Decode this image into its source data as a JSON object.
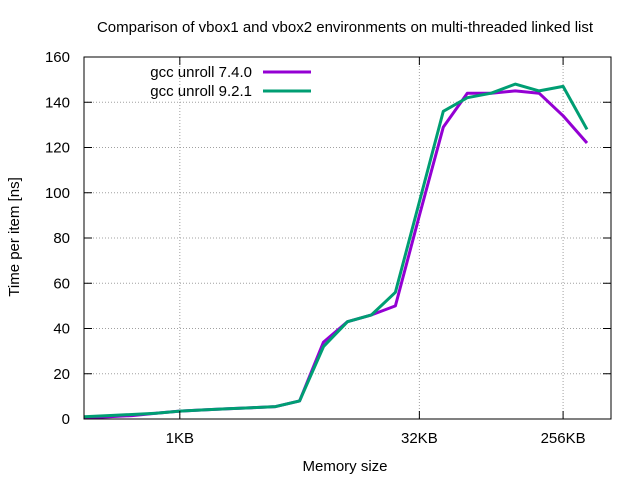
{
  "chart_data": {
    "type": "line",
    "title": "Comparison of vbox1 and vbox2 environments on multi-threaded linked list",
    "xlabel": "Memory size",
    "ylabel": "Time per item [ns]",
    "x_scale": "log2",
    "x_unit": "bytes",
    "xlim": [
      256,
      524288
    ],
    "ylim": [
      0,
      160
    ],
    "y_ticks": [
      0,
      20,
      40,
      60,
      80,
      100,
      120,
      140,
      160
    ],
    "x_ticks": [
      {
        "value": 1024,
        "label": "1KB"
      },
      {
        "value": 32768,
        "label": "32KB"
      },
      {
        "value": 262144,
        "label": "256KB"
      }
    ],
    "grid": true,
    "legend_position": "top-left",
    "series": [
      {
        "name": "gcc unroll 7.4.0",
        "color": "#9400d3",
        "points": [
          [
            256,
            0.5
          ],
          [
            362,
            1
          ],
          [
            512,
            1.5
          ],
          [
            724,
            2.5
          ],
          [
            1024,
            3.5
          ],
          [
            1448,
            4
          ],
          [
            2048,
            4.5
          ],
          [
            2896,
            5
          ],
          [
            4096,
            5.5
          ],
          [
            5793,
            8
          ],
          [
            8192,
            34
          ],
          [
            11585,
            43
          ],
          [
            16384,
            46
          ],
          [
            23170,
            50
          ],
          [
            32768,
            90
          ],
          [
            46341,
            129
          ],
          [
            65536,
            144
          ],
          [
            92682,
            144
          ],
          [
            131072,
            145
          ],
          [
            185364,
            144
          ],
          [
            262144,
            134
          ],
          [
            370728,
            122
          ]
        ]
      },
      {
        "name": "gcc unroll 9.2.1",
        "color": "#009e73",
        "points": [
          [
            256,
            1
          ],
          [
            362,
            1.5
          ],
          [
            512,
            2
          ],
          [
            724,
            2.5
          ],
          [
            1024,
            3.5
          ],
          [
            1448,
            4
          ],
          [
            2048,
            4.5
          ],
          [
            2896,
            5
          ],
          [
            4096,
            5.5
          ],
          [
            5793,
            8
          ],
          [
            8192,
            32
          ],
          [
            11585,
            43
          ],
          [
            16384,
            46
          ],
          [
            23170,
            56
          ],
          [
            32768,
            96
          ],
          [
            46341,
            136
          ],
          [
            65536,
            142
          ],
          [
            92682,
            144
          ],
          [
            131072,
            148
          ],
          [
            185364,
            145
          ],
          [
            262144,
            147
          ],
          [
            370728,
            128
          ]
        ]
      }
    ]
  }
}
